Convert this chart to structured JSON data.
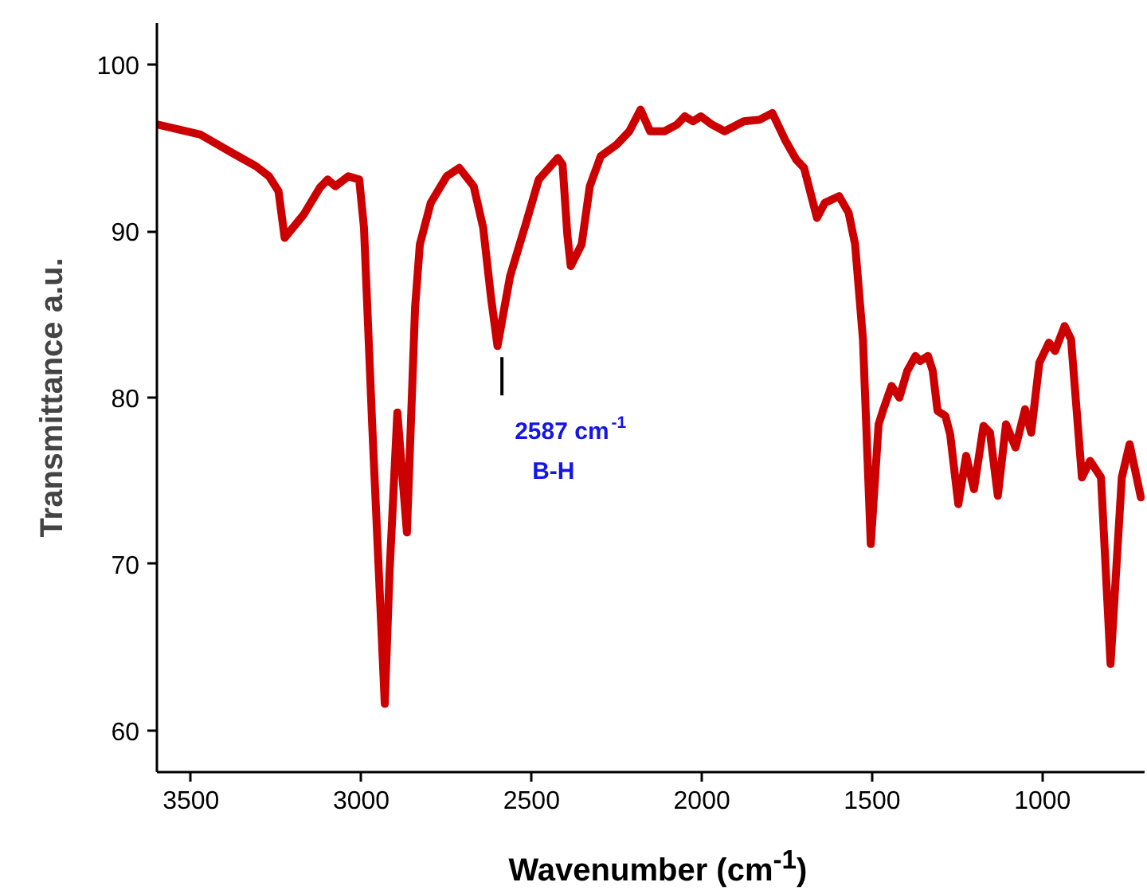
{
  "chart_data": {
    "type": "line",
    "xlabel": "Wavenumber (cm$^{-1}$)",
    "ylabel": "Transmittance a.u.",
    "xlim": [
      3600,
      700
    ],
    "ylim": [
      57.5,
      102.5
    ],
    "xticks": [
      3500,
      3000,
      2500,
      2000,
      1500,
      1000
    ],
    "yticks": [
      60,
      70,
      80,
      90,
      100
    ],
    "grid": false,
    "marker": "none",
    "line_style": "solid",
    "annotations": [
      {
        "text": "2587 cm$^{-1}$",
        "x": 2587,
        "y": 83.1
      },
      "B-H"
    ],
    "series": [
      {
        "color": "#cc0000",
        "x": [
          3598,
          3472,
          3379,
          3309,
          3271,
          3243,
          3225,
          3169,
          3122,
          3099,
          3076,
          3038,
          3006,
          2992,
          2968,
          2931,
          2917,
          2894,
          2866,
          2842,
          2828,
          2796,
          2749,
          2712,
          2670,
          2642,
          2619,
          2600,
          2563,
          2516,
          2479,
          2423,
          2409,
          2395,
          2385,
          2353,
          2329,
          2297,
          2250,
          2213,
          2180,
          2152,
          2110,
          2073,
          2050,
          2026,
          2003,
          1970,
          1933,
          1877,
          1830,
          1793,
          1756,
          1723,
          1700,
          1662,
          1639,
          1597,
          1569,
          1550,
          1527,
          1504,
          1481,
          1467,
          1443,
          1420,
          1397,
          1373,
          1359,
          1336,
          1322,
          1308,
          1285,
          1271,
          1247,
          1224,
          1201,
          1173,
          1154,
          1131,
          1107,
          1079,
          1051,
          1033,
          1009,
          981,
          963,
          935,
          916,
          884,
          860,
          828,
          800,
          767,
          744,
          711
        ],
        "values": [
          96.4,
          95.8,
          94.7,
          93.9,
          93.3,
          92.4,
          89.6,
          91.0,
          92.6,
          93.1,
          92.7,
          93.3,
          93.1,
          90.2,
          78.4,
          61.6,
          69.5,
          79.1,
          71.9,
          85.4,
          89.2,
          91.7,
          93.3,
          93.8,
          92.7,
          90.2,
          86.0,
          83.1,
          87.3,
          90.5,
          93.1,
          94.4,
          94.0,
          89.8,
          87.9,
          89.2,
          92.7,
          94.5,
          95.2,
          96.0,
          97.3,
          96.0,
          96.0,
          96.4,
          96.9,
          96.6,
          96.9,
          96.4,
          96.0,
          96.6,
          96.7,
          97.1,
          95.5,
          94.3,
          93.8,
          90.8,
          91.7,
          92.1,
          91.1,
          89.2,
          83.5,
          71.2,
          78.4,
          79.3,
          80.7,
          80.0,
          81.6,
          82.5,
          82.2,
          82.5,
          81.6,
          79.2,
          78.9,
          77.8,
          73.6,
          76.5,
          74.5,
          78.3,
          77.9,
          74.1,
          78.4,
          77.0,
          79.3,
          77.9,
          82.1,
          83.3,
          82.8,
          84.3,
          83.5,
          75.2,
          76.2,
          75.2,
          64.0,
          75.2,
          77.2,
          74.0
        ]
      }
    ]
  }
}
